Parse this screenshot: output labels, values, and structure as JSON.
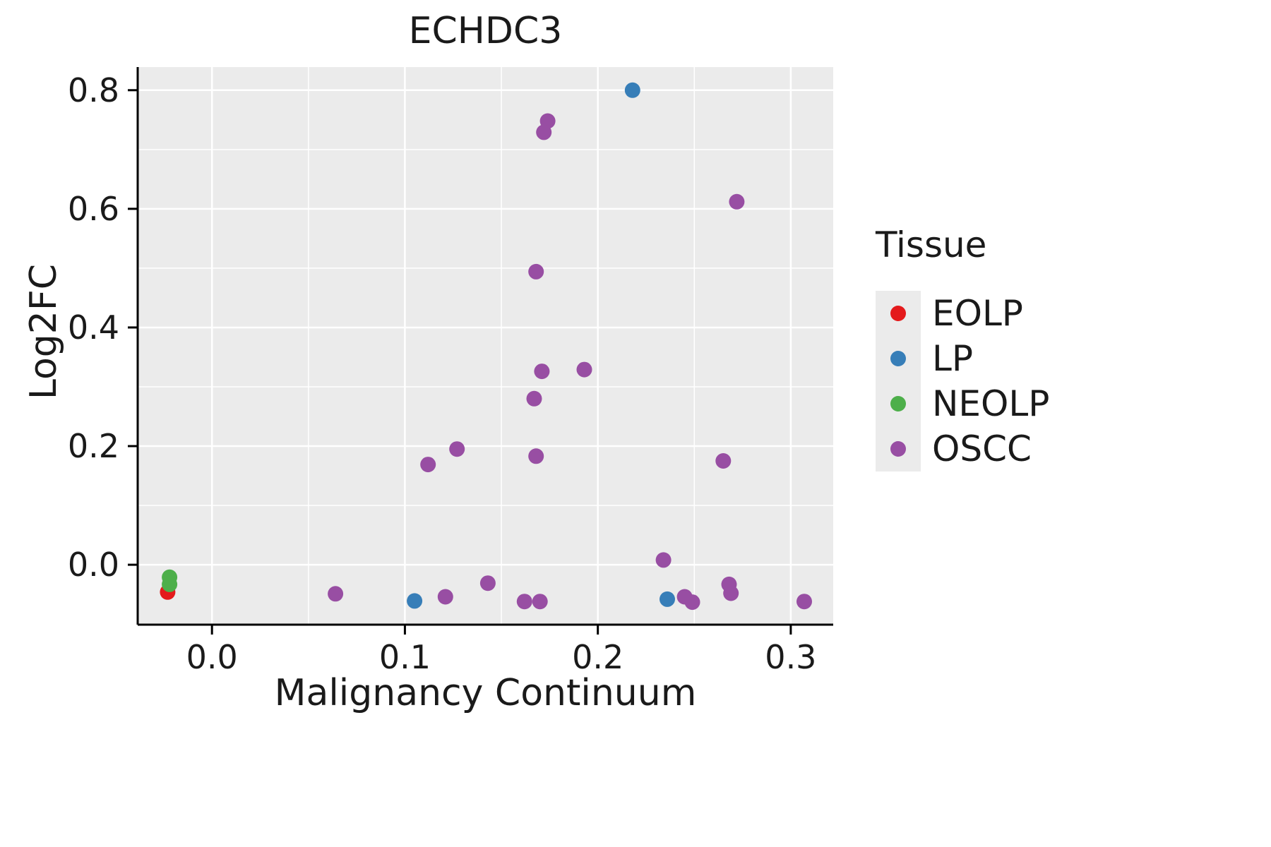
{
  "chart_data": {
    "type": "scatter",
    "title": "ECHDC3",
    "xlabel": "Malignancy Continuum",
    "ylabel": "Log2FC",
    "legend_title": "Tissue",
    "legend_position": "right",
    "grid": true,
    "panel_background": "#EBEBEB",
    "gridline_color": "#FFFFFF",
    "xlim": [
      -0.0385,
      0.322
    ],
    "ylim": [
      -0.101,
      0.839
    ],
    "x_major_ticks": [
      0.0,
      0.1,
      0.2,
      0.3
    ],
    "x_tick_labels": [
      "0.0",
      "0.1",
      "0.2",
      "0.3"
    ],
    "x_minor_ticks": [
      0.05,
      0.15,
      0.25
    ],
    "y_major_ticks": [
      0.0,
      0.2,
      0.4,
      0.6,
      0.8
    ],
    "y_tick_labels": [
      "0.0",
      "0.2",
      "0.4",
      "0.6",
      "0.8"
    ],
    "y_minor_ticks": [
      0.1,
      0.3,
      0.5,
      0.7
    ],
    "point_radius": 11,
    "series": [
      {
        "name": "EOLP",
        "color": "#E41A1C",
        "points": [
          [
            -0.023,
            -0.046
          ]
        ]
      },
      {
        "name": "LP",
        "color": "#377EB8",
        "points": [
          [
            0.218,
            0.8
          ],
          [
            0.105,
            -0.061
          ],
          [
            0.236,
            -0.058
          ]
        ]
      },
      {
        "name": "NEOLP",
        "color": "#4DAF4A",
        "points": [
          [
            -0.022,
            -0.021
          ],
          [
            -0.022,
            -0.033
          ]
        ]
      },
      {
        "name": "OSCC",
        "color": "#984EA3",
        "points": [
          [
            0.174,
            0.748
          ],
          [
            0.172,
            0.729
          ],
          [
            0.272,
            0.612
          ],
          [
            0.168,
            0.494
          ],
          [
            0.171,
            0.326
          ],
          [
            0.193,
            0.329
          ],
          [
            0.167,
            0.28
          ],
          [
            0.127,
            0.195
          ],
          [
            0.168,
            0.183
          ],
          [
            0.112,
            0.169
          ],
          [
            0.265,
            0.175
          ],
          [
            0.234,
            0.008
          ],
          [
            0.143,
            -0.031
          ],
          [
            0.268,
            -0.033
          ],
          [
            0.269,
            -0.048
          ],
          [
            0.064,
            -0.049
          ],
          [
            0.121,
            -0.054
          ],
          [
            0.245,
            -0.054
          ],
          [
            0.162,
            -0.062
          ],
          [
            0.17,
            -0.062
          ],
          [
            0.249,
            -0.063
          ],
          [
            0.307,
            -0.062
          ]
        ]
      }
    ]
  }
}
